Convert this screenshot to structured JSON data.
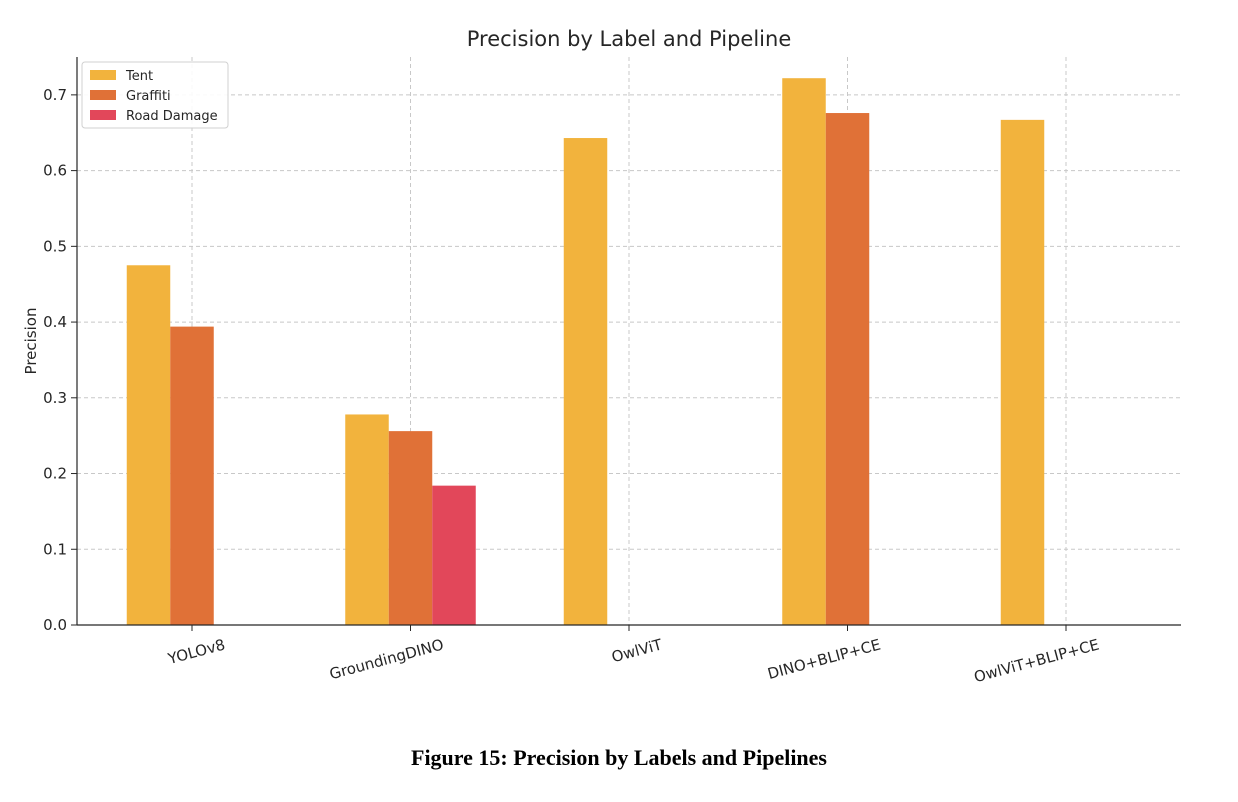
{
  "figure": {
    "caption": "Figure 15: Precision by Labels and Pipelines"
  },
  "chart_data": {
    "type": "bar",
    "title": "Precision by Label and Pipeline",
    "xlabel": "",
    "ylabel": "Precision",
    "ylim": [
      0,
      0.75
    ],
    "yticks": [
      0.0,
      0.1,
      0.2,
      0.3,
      0.4,
      0.5,
      0.6,
      0.7
    ],
    "ytick_labels": [
      "0.0",
      "0.1",
      "0.2",
      "0.3",
      "0.4",
      "0.5",
      "0.6",
      "0.7"
    ],
    "categories": [
      "YOLOv8",
      "GroundingDINO",
      "OwlViT",
      "DINO+BLIP+CE",
      "OwlViT+BLIP+CE"
    ],
    "series": [
      {
        "name": "Tent",
        "color": "#F2B33D",
        "values": [
          0.475,
          0.278,
          0.643,
          0.722,
          0.667
        ]
      },
      {
        "name": "Graffiti",
        "color": "#E07137",
        "values": [
          0.394,
          0.256,
          null,
          0.676,
          null
        ]
      },
      {
        "name": "Road Damage",
        "color": "#E2475A",
        "values": [
          null,
          0.184,
          null,
          null,
          null
        ]
      }
    ],
    "grid": true,
    "legend": "top-left"
  }
}
